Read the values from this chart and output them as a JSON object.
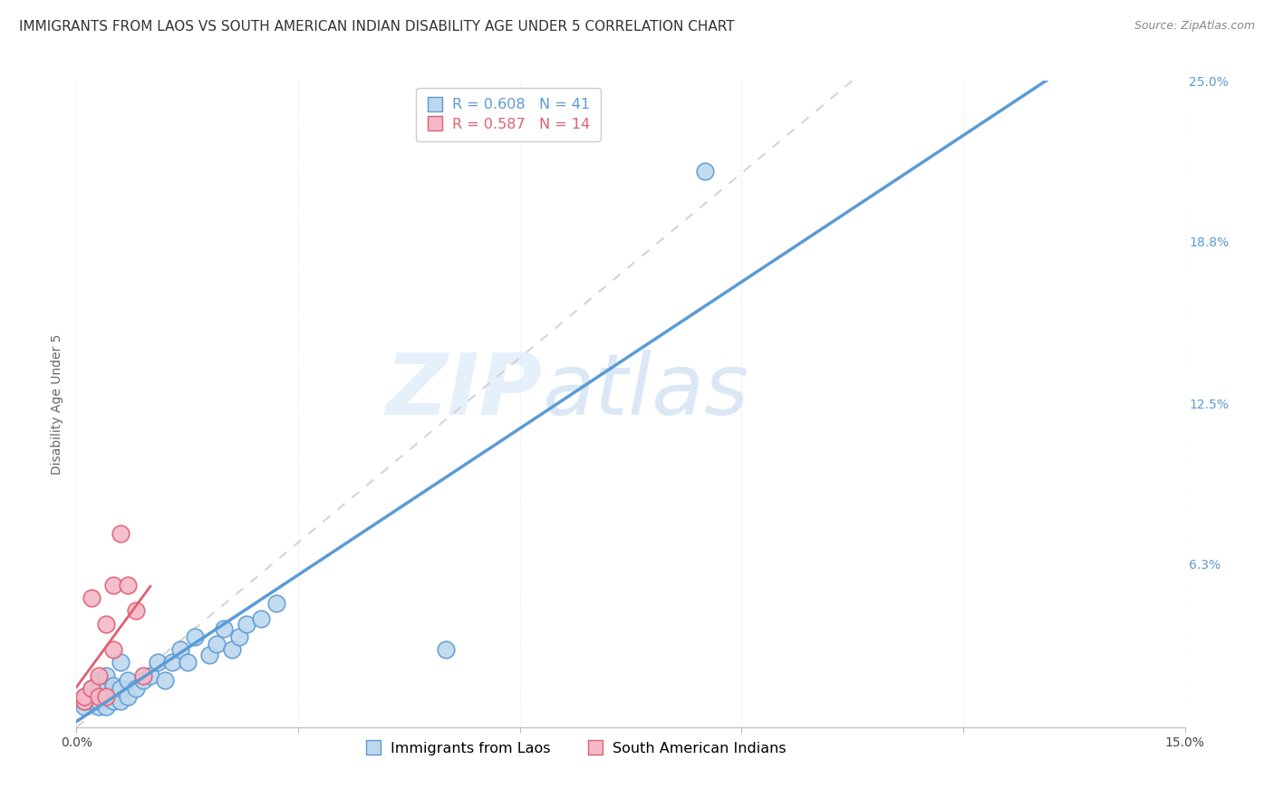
{
  "title": "IMMIGRANTS FROM LAOS VS SOUTH AMERICAN INDIAN DISABILITY AGE UNDER 5 CORRELATION CHART",
  "source": "Source: ZipAtlas.com",
  "ylabel": "Disability Age Under 5",
  "xlim": [
    0,
    0.15
  ],
  "ylim": [
    0,
    0.25
  ],
  "ytick_labels_right": [
    "6.3%",
    "12.5%",
    "18.8%",
    "25.0%"
  ],
  "yticks_right": [
    0.063,
    0.125,
    0.188,
    0.25
  ],
  "blue_scatter_x": [
    0.001,
    0.001,
    0.001,
    0.002,
    0.002,
    0.002,
    0.003,
    0.003,
    0.003,
    0.003,
    0.004,
    0.004,
    0.004,
    0.004,
    0.005,
    0.005,
    0.005,
    0.006,
    0.006,
    0.006,
    0.007,
    0.007,
    0.008,
    0.009,
    0.01,
    0.011,
    0.012,
    0.013,
    0.014,
    0.015,
    0.016,
    0.018,
    0.019,
    0.02,
    0.021,
    0.022,
    0.023,
    0.025,
    0.027,
    0.05,
    0.085
  ],
  "blue_scatter_y": [
    0.008,
    0.01,
    0.012,
    0.01,
    0.012,
    0.015,
    0.008,
    0.01,
    0.013,
    0.018,
    0.008,
    0.012,
    0.015,
    0.02,
    0.01,
    0.013,
    0.016,
    0.01,
    0.015,
    0.025,
    0.012,
    0.018,
    0.015,
    0.018,
    0.02,
    0.025,
    0.018,
    0.025,
    0.03,
    0.025,
    0.035,
    0.028,
    0.032,
    0.038,
    0.03,
    0.035,
    0.04,
    0.042,
    0.048,
    0.03,
    0.215
  ],
  "pink_scatter_x": [
    0.001,
    0.001,
    0.002,
    0.002,
    0.003,
    0.003,
    0.004,
    0.004,
    0.005,
    0.005,
    0.006,
    0.007,
    0.008,
    0.009
  ],
  "pink_scatter_y": [
    0.01,
    0.012,
    0.015,
    0.05,
    0.012,
    0.02,
    0.012,
    0.04,
    0.03,
    0.055,
    0.075,
    0.055,
    0.045,
    0.02
  ],
  "blue_line_color": "#5b9bd5",
  "pink_line_color": "#e06070",
  "ref_line_color": "#d0d0d0",
  "scatter_blue_color": "#bdd7ee",
  "scatter_pink_color": "#f4b8c8",
  "background_color": "#ffffff",
  "grid_color": "#e0e4ec",
  "title_fontsize": 11,
  "axis_label_fontsize": 10,
  "watermark_zip_color": "#d0dff5",
  "watermark_atlas_color": "#b8c8e8"
}
